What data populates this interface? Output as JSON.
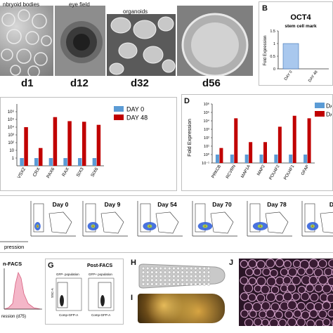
{
  "panelA": {
    "captions": [
      "nbryoid bodies",
      "eye field",
      "organoids"
    ],
    "days": [
      "d1",
      "d12",
      "d32",
      "d56"
    ]
  },
  "panelB": {
    "letter": "B",
    "title": "OCT4",
    "subtitle": "stem cell mark",
    "ylabel": "Fold Expression"
  },
  "panelC": {
    "legend": [
      "DAY 0",
      "DAY 48"
    ]
  },
  "panelD": {
    "letter": "D",
    "ylabel": "Fold Expression",
    "legend": [
      "DA",
      "DA"
    ]
  },
  "panelE": {
    "titles": [
      "Day 0",
      "Day 9",
      "Day 54",
      "Day 70",
      "Day 78",
      "D"
    ],
    "xcaption": "pression"
  },
  "panelF": {
    "title": "n-FACS",
    "xlabel": "ression (d75)"
  },
  "panelG": {
    "letter": "G",
    "title": "Post-FACS",
    "left_label": "GFP- population",
    "right_label": "GFP+ population",
    "xaxis": "Comp-GFP-A",
    "yaxis": "SSC-A"
  },
  "panelH": {
    "letter": "H"
  },
  "panelI": {
    "letter": "I"
  },
  "panelJ": {
    "letter": "J"
  },
  "colors": {
    "day0": "#5b9bd5",
    "day48": "#c00000",
    "blue_bar": "#a9c8ee",
    "flow_blue": "#2a5bd7"
  },
  "chart_data": [
    {
      "type": "bar",
      "title": "OCT4",
      "categories": [
        "DAY 0",
        "DAY 48"
      ],
      "values": [
        1.0,
        0.0
      ],
      "ylabel": "Fold Expression",
      "ylim": [
        0,
        1.5
      ],
      "yticks": [
        "0",
        "0.5",
        "1",
        "1.5"
      ]
    },
    {
      "type": "bar",
      "categories": [
        "VSX2",
        "CRX",
        "PAX6",
        "RAX",
        "SIX3",
        "SIX6"
      ],
      "series": [
        {
          "name": "DAY 0",
          "values": [
            1,
            1,
            1,
            1,
            1,
            1
          ]
        },
        {
          "name": "DAY 48",
          "values": [
            10000,
            20,
            200000,
            60000,
            50000,
            20000
          ]
        }
      ],
      "scale": "log",
      "ylim": [
        0.1,
        10000000
      ],
      "yticks": [
        "1",
        "10",
        "10²",
        "10³",
        "10⁴",
        "10⁵",
        "10⁶"
      ]
    },
    {
      "type": "bar",
      "categories": [
        "PRKCB",
        "RCVRN",
        "MAP1A",
        "MAP2",
        "POU4F2",
        "POU4F1",
        "GFAP"
      ],
      "series": [
        {
          "values": [
            1,
            1,
            1,
            1,
            1,
            1,
            1
          ]
        },
        {
          "values": [
            6,
            20000,
            30,
            30,
            2000,
            40000,
            20000
          ]
        }
      ],
      "scale": "log",
      "ylim": [
        0.1,
        1000000
      ],
      "ylabel": "Fold Expression",
      "yticks": [
        "10⁻¹",
        "10⁰",
        "10¹",
        "10²",
        "10³",
        "10⁴",
        "10⁵",
        "10⁶"
      ]
    }
  ]
}
